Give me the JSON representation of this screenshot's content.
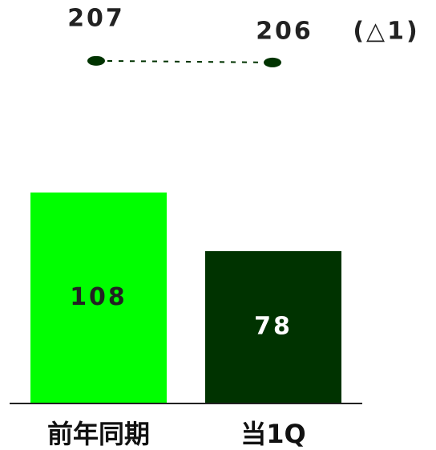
{
  "chart_data": {
    "type": "bar",
    "categories": [
      "前年同期",
      "当1Q"
    ],
    "values": [
      108,
      78
    ],
    "colors": [
      "#00ff00",
      "#003300"
    ],
    "ylim": [
      0,
      200
    ],
    "line": {
      "values": [
        207,
        206
      ],
      "color": "#003300",
      "axis": "y2"
    },
    "y2lim": [
      0,
      236
    ],
    "annotations": [
      "(△1)"
    ]
  }
}
